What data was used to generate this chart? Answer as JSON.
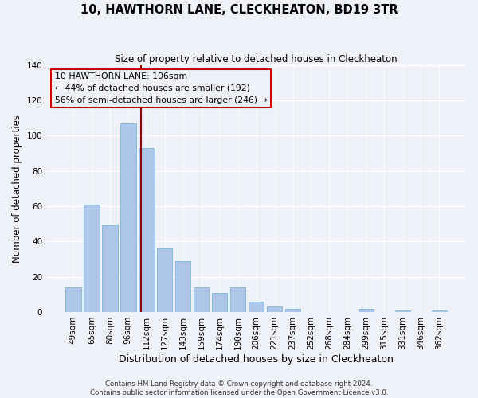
{
  "title": "10, HAWTHORN LANE, CLECKHEATON, BD19 3TR",
  "subtitle": "Size of property relative to detached houses in Cleckheaton",
  "xlabel": "Distribution of detached houses by size in Cleckheaton",
  "ylabel": "Number of detached properties",
  "footer_line1": "Contains HM Land Registry data © Crown copyright and database right 2024.",
  "footer_line2": "Contains public sector information licensed under the Open Government Licence v3.0.",
  "categories": [
    "49sqm",
    "65sqm",
    "80sqm",
    "96sqm",
    "112sqm",
    "127sqm",
    "143sqm",
    "159sqm",
    "174sqm",
    "190sqm",
    "206sqm",
    "221sqm",
    "237sqm",
    "252sqm",
    "268sqm",
    "284sqm",
    "299sqm",
    "315sqm",
    "331sqm",
    "346sqm",
    "362sqm"
  ],
  "values": [
    14,
    61,
    49,
    107,
    93,
    36,
    29,
    14,
    11,
    14,
    6,
    3,
    2,
    0,
    0,
    0,
    2,
    0,
    1,
    0,
    1
  ],
  "bar_color": "#aec6e8",
  "bar_edge_color": "#7ab4d8",
  "marker_color": "#8b0000",
  "ylim": [
    0,
    140
  ],
  "yticks": [
    0,
    20,
    40,
    60,
    80,
    100,
    120,
    140
  ],
  "annotation_title": "10 HAWTHORN LANE: 106sqm",
  "annotation_line1": "← 44% of detached houses are smaller (192)",
  "annotation_line2": "56% of semi-detached houses are larger (246) →",
  "background_color": "#eef2f8",
  "grid_color": "#ffffff",
  "annotation_box_facecolor": "#eef2f8",
  "annotation_box_edgecolor": "#cc0000"
}
